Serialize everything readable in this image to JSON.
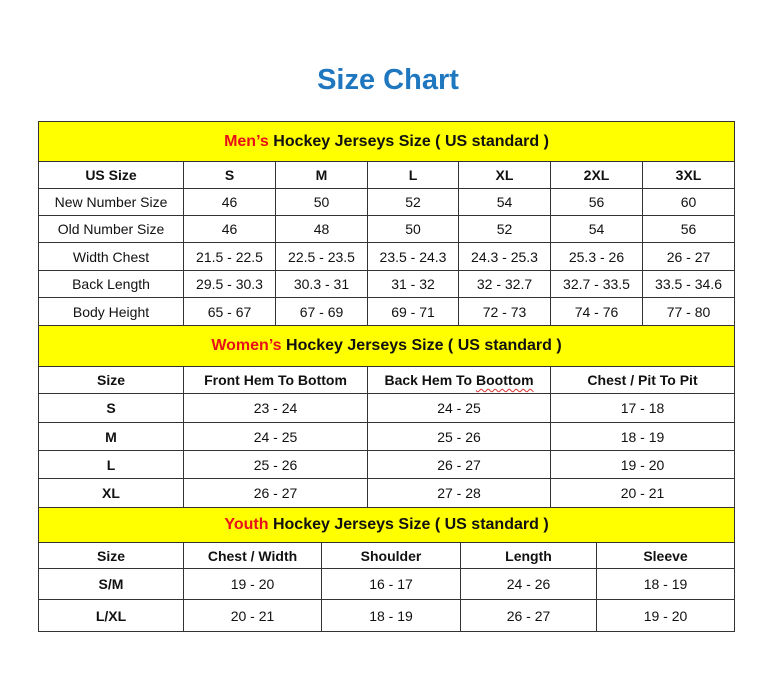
{
  "title": "Size Chart",
  "colors": {
    "title": "#1f77c0",
    "header_bg": "#ffff00",
    "highlight": "#e8101a"
  },
  "men": {
    "highlight": "Men’s",
    "heading": " Hockey Jerseys Size ( US standard )",
    "columns": [
      "US Size",
      "S",
      "M",
      "L",
      "XL",
      "2XL",
      "3XL"
    ],
    "rows": [
      [
        "New Number Size",
        "46",
        "50",
        "52",
        "54",
        "56",
        "60"
      ],
      [
        "Old Number Size",
        "46",
        "48",
        "50",
        "52",
        "54",
        "56"
      ],
      [
        "Width Chest",
        "21.5 - 22.5",
        "22.5 - 23.5",
        "23.5 - 24.3",
        "24.3 - 25.3",
        "25.3 - 26",
        "26 - 27"
      ],
      [
        "Back Length",
        "29.5 - 30.3",
        "30.3 - 31",
        "31 - 32",
        "32 - 32.7",
        "32.7 - 33.5",
        "33.5 - 34.6"
      ],
      [
        "Body Height",
        "65 - 67",
        "67 - 69",
        "69 - 71",
        "72 - 73",
        "74 - 76",
        "77 - 80"
      ]
    ]
  },
  "women": {
    "highlight": "Women’s",
    "heading": " Hockey Jerseys Size ( US standard )",
    "columns": [
      "Size",
      "Front Hem To Bottom",
      "Back Hem To Boottom",
      "Chest / Pit To Pit"
    ],
    "rows": [
      [
        "S",
        "23 - 24",
        "24 - 25",
        "17 - 18"
      ],
      [
        "M",
        "24 - 25",
        "25 - 26",
        "18 - 19"
      ],
      [
        "L",
        "25 - 26",
        "26 - 27",
        "19 - 20"
      ],
      [
        "XL",
        "26 - 27",
        "27 - 28",
        "20 - 21"
      ]
    ]
  },
  "youth": {
    "highlight": "Youth",
    "heading": " Hockey Jerseys Size ( US standard )",
    "columns": [
      "Size",
      "Chest / Width",
      "Shoulder",
      "Length",
      "Sleeve"
    ],
    "rows": [
      [
        "S/M",
        "19 - 20",
        "16 - 17",
        "24 - 26",
        "18 - 19"
      ],
      [
        "L/XL",
        "20 - 21",
        "18 - 19",
        "26 - 27",
        "19 - 20"
      ]
    ]
  }
}
